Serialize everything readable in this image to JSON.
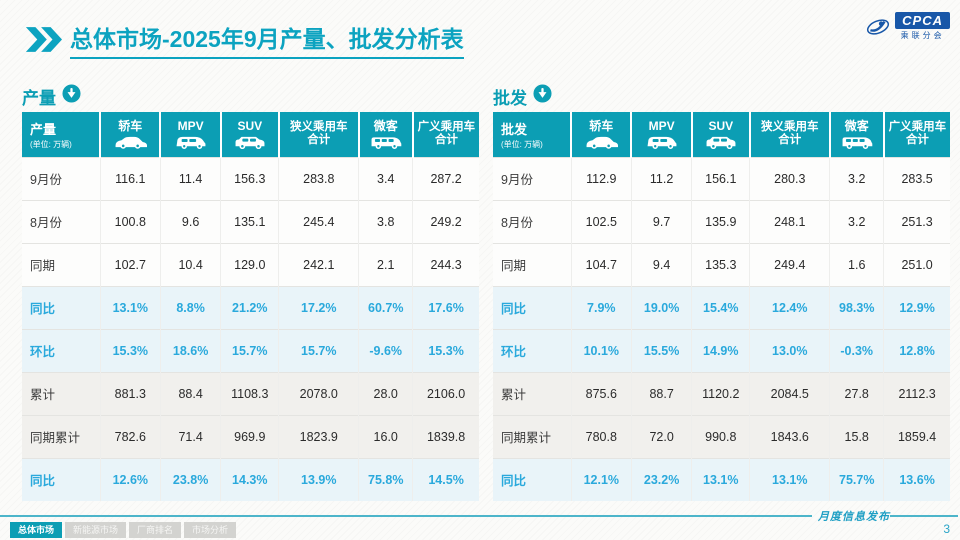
{
  "page": {
    "title_prefix": "总体市场",
    "title_rest": "-2025年9月产量、批发分析表",
    "footer_note": "月度信息发布",
    "page_number": "3"
  },
  "logo": {
    "name": "CPCA",
    "caption": "乘联分会"
  },
  "colors": {
    "accent_teal": "#0c9eb4",
    "percent_blue": "#2aa9dc",
    "title_teal": "#0ca3c0",
    "logo_blue": "#1857a8"
  },
  "tables": [
    {
      "section_title": "产量",
      "title": "产量",
      "unit": "(单位: 万辆)",
      "columns": [
        {
          "label": "轿车",
          "icon": "sedan-icon"
        },
        {
          "label": "MPV",
          "icon": "mpv-icon"
        },
        {
          "label": "SUV",
          "icon": "suv-icon"
        },
        {
          "label": "狭义乘用车合计",
          "icon": null
        },
        {
          "label": "微客",
          "icon": "microvan-icon"
        },
        {
          "label": "广义乘用车合计",
          "icon": null
        }
      ],
      "rows": [
        {
          "label": "9月份",
          "style": "normal",
          "values": [
            "116.1",
            "11.4",
            "156.3",
            "283.8",
            "3.4",
            "287.2"
          ]
        },
        {
          "label": "8月份",
          "style": "normal",
          "values": [
            "100.8",
            "9.6",
            "135.1",
            "245.4",
            "3.8",
            "249.2"
          ]
        },
        {
          "label": "同期",
          "style": "normal",
          "values": [
            "102.7",
            "10.4",
            "129.0",
            "242.1",
            "2.1",
            "244.3"
          ]
        },
        {
          "label": "同比",
          "style": "pct",
          "values": [
            "13.1%",
            "8.8%",
            "21.2%",
            "17.2%",
            "60.7%",
            "17.6%"
          ]
        },
        {
          "label": "环比",
          "style": "pct",
          "values": [
            "15.3%",
            "18.6%",
            "15.7%",
            "15.7%",
            "-9.6%",
            "15.3%"
          ]
        },
        {
          "label": "累计",
          "style": "gray",
          "values": [
            "881.3",
            "88.4",
            "1108.3",
            "2078.0",
            "28.0",
            "2106.0"
          ]
        },
        {
          "label": "同期累计",
          "style": "gray",
          "values": [
            "782.6",
            "71.4",
            "969.9",
            "1823.9",
            "16.0",
            "1839.8"
          ]
        },
        {
          "label": "同比",
          "style": "pct",
          "values": [
            "12.6%",
            "23.8%",
            "14.3%",
            "13.9%",
            "75.8%",
            "14.5%"
          ]
        }
      ]
    },
    {
      "section_title": "批发",
      "title": "批发",
      "unit": "(单位: 万辆)",
      "columns": [
        {
          "label": "轿车",
          "icon": "sedan-icon"
        },
        {
          "label": "MPV",
          "icon": "mpv-icon"
        },
        {
          "label": "SUV",
          "icon": "suv-icon"
        },
        {
          "label": "狭义乘用车合计",
          "icon": null
        },
        {
          "label": "微客",
          "icon": "microvan-icon"
        },
        {
          "label": "广义乘用车合计",
          "icon": null
        }
      ],
      "rows": [
        {
          "label": "9月份",
          "style": "normal",
          "values": [
            "112.9",
            "11.2",
            "156.1",
            "280.3",
            "3.2",
            "283.5"
          ]
        },
        {
          "label": "8月份",
          "style": "normal",
          "values": [
            "102.5",
            "9.7",
            "135.9",
            "248.1",
            "3.2",
            "251.3"
          ]
        },
        {
          "label": "同期",
          "style": "normal",
          "values": [
            "104.7",
            "9.4",
            "135.3",
            "249.4",
            "1.6",
            "251.0"
          ]
        },
        {
          "label": "同比",
          "style": "pct",
          "values": [
            "7.9%",
            "19.0%",
            "15.4%",
            "12.4%",
            "98.3%",
            "12.9%"
          ]
        },
        {
          "label": "环比",
          "style": "pct",
          "values": [
            "10.1%",
            "15.5%",
            "14.9%",
            "13.0%",
            "-0.3%",
            "12.8%"
          ]
        },
        {
          "label": "累计",
          "style": "gray",
          "values": [
            "875.6",
            "88.7",
            "1120.2",
            "2084.5",
            "27.8",
            "2112.3"
          ]
        },
        {
          "label": "同期累计",
          "style": "gray",
          "values": [
            "780.8",
            "72.0",
            "990.8",
            "1843.6",
            "15.8",
            "1859.4"
          ]
        },
        {
          "label": "同比",
          "style": "pct",
          "values": [
            "12.1%",
            "23.2%",
            "13.1%",
            "13.1%",
            "75.7%",
            "13.6%"
          ]
        }
      ]
    }
  ],
  "footer_tabs": [
    {
      "label": "总体市场",
      "active": true
    },
    {
      "label": "新能源市场",
      "active": false
    },
    {
      "label": "厂商排名",
      "active": false
    },
    {
      "label": "市场分析",
      "active": false
    }
  ]
}
